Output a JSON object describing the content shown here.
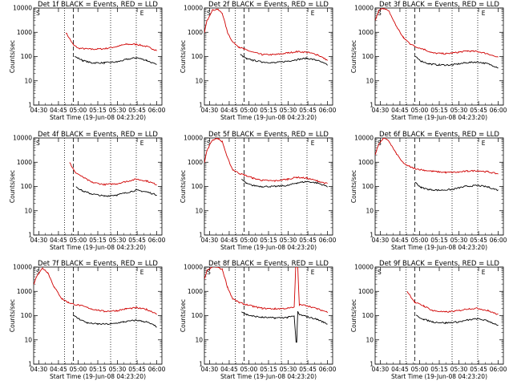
{
  "figure": {
    "xlabel": "Start Time (19-Jun-08 04:23:20)",
    "ylabel": "Counts/sec"
  },
  "chart_data": [
    {
      "type": "line",
      "title": "Det 1f  BLACK = Events, RED = LLD",
      "xticks": [
        "04:30",
        "04:45",
        "05:00",
        "05:15",
        "05:30",
        "05:45",
        "06:00"
      ],
      "yticks": [
        "1",
        "10",
        "100",
        "1000",
        "10000"
      ],
      "ylim": [
        1,
        10000
      ],
      "yscale": "log",
      "legend_marks": [
        "S",
        "E"
      ],
      "series": [
        {
          "color": "#d00000",
          "x": [
            0.0,
            0.24,
            0.25,
            0.31,
            0.35,
            0.45,
            0.55,
            0.65,
            0.72,
            0.8,
            0.88,
            0.96
          ],
          "y": [
            null,
            null,
            1000,
            300,
            220,
            200,
            210,
            260,
            320,
            320,
            260,
            180
          ]
        },
        {
          "color": "#000000",
          "x": [
            0.31,
            0.32,
            0.38,
            0.45,
            0.55,
            0.65,
            0.72,
            0.8,
            0.88,
            0.96
          ],
          "y": [
            null,
            100,
            70,
            55,
            55,
            60,
            75,
            90,
            70,
            45
          ]
        }
      ]
    },
    {
      "type": "line",
      "title": "Det 2f  BLACK = Events, RED = LLD",
      "xticks": [
        "04:30",
        "04:45",
        "05:00",
        "05:15",
        "05:30",
        "05:45",
        "06:00"
      ],
      "yticks": [
        "1",
        "10",
        "100",
        "1000",
        "10000"
      ],
      "ylim": [
        1,
        10000
      ],
      "yscale": "log",
      "legend_marks": [
        "S",
        "E"
      ],
      "series": [
        {
          "color": "#d00000",
          "x": [
            0.0,
            0.02,
            0.06,
            0.1,
            0.14,
            0.18,
            0.22,
            0.27,
            0.31,
            0.38,
            0.45,
            0.55,
            0.65,
            0.72,
            0.8,
            0.88,
            0.96
          ],
          "y": [
            1000,
            3000,
            8000,
            9000,
            6000,
            1000,
            400,
            250,
            200,
            150,
            120,
            120,
            140,
            160,
            150,
            120,
            70
          ]
        },
        {
          "color": "#000000",
          "x": [
            0.27,
            0.28,
            0.33,
            0.38,
            0.45,
            0.55,
            0.65,
            0.72,
            0.8,
            0.88,
            0.96
          ],
          "y": [
            null,
            120,
            80,
            70,
            60,
            55,
            65,
            75,
            85,
            70,
            45
          ]
        }
      ]
    },
    {
      "type": "line",
      "title": "Det 3f  BLACK = Events, RED = LLD",
      "xticks": [
        "04:30",
        "04:45",
        "05:00",
        "05:15",
        "05:30",
        "05:45",
        "06:00"
      ],
      "yticks": [
        "1",
        "10",
        "100",
        "1000",
        "10000"
      ],
      "ylim": [
        1,
        10000
      ],
      "yscale": "log",
      "legend_marks": [
        "S",
        "E"
      ],
      "series": [
        {
          "color": "#d00000",
          "x": [
            0.0,
            0.03,
            0.07,
            0.11,
            0.16,
            0.22,
            0.27,
            0.31,
            0.38,
            0.45,
            0.55,
            0.65,
            0.72,
            0.8,
            0.88,
            0.96
          ],
          "y": [
            3000,
            8000,
            10000,
            7000,
            2000,
            600,
            350,
            260,
            200,
            140,
            130,
            150,
            170,
            160,
            130,
            90
          ]
        },
        {
          "color": "#000000",
          "x": [
            0.3,
            0.31,
            0.36,
            0.42,
            0.5,
            0.6,
            0.7,
            0.8,
            0.88,
            0.96
          ],
          "y": [
            null,
            100,
            65,
            50,
            45,
            45,
            55,
            60,
            50,
            35
          ]
        }
      ]
    },
    {
      "type": "line",
      "title": "Det 4f  BLACK = Events, RED = LLD",
      "xticks": [
        "04:30",
        "04:45",
        "05:00",
        "05:15",
        "05:30",
        "05:45",
        "06:00"
      ],
      "yticks": [
        "1",
        "10",
        "100",
        "1000",
        "10000"
      ],
      "ylim": [
        1,
        10000
      ],
      "yscale": "log",
      "legend_marks": [
        "S",
        "E"
      ],
      "series": [
        {
          "color": "#d00000",
          "x": [
            0.0,
            0.26,
            0.28,
            0.32,
            0.38,
            0.45,
            0.55,
            0.65,
            0.72,
            0.8,
            0.88,
            0.96
          ],
          "y": [
            null,
            null,
            1000,
            400,
            250,
            150,
            120,
            130,
            160,
            200,
            170,
            120
          ]
        },
        {
          "color": "#000000",
          "x": [
            0.32,
            0.33,
            0.38,
            0.45,
            0.55,
            0.65,
            0.72,
            0.8,
            0.88,
            0.96
          ],
          "y": [
            null,
            100,
            65,
            50,
            40,
            45,
            55,
            70,
            60,
            45
          ]
        }
      ]
    },
    {
      "type": "line",
      "title": "Det 5f  BLACK = Events, RED = LLD",
      "xticks": [
        "04:30",
        "04:45",
        "05:00",
        "05:15",
        "05:30",
        "05:45",
        "06:00"
      ],
      "yticks": [
        "1",
        "10",
        "100",
        "1000",
        "10000"
      ],
      "ylim": [
        1,
        10000
      ],
      "yscale": "log",
      "legend_marks": [
        "S",
        "E"
      ],
      "series": [
        {
          "color": "#d00000",
          "x": [
            0.0,
            0.02,
            0.06,
            0.1,
            0.14,
            0.18,
            0.22,
            0.27,
            0.31,
            0.38,
            0.45,
            0.55,
            0.65,
            0.72,
            0.8,
            0.88,
            0.96
          ],
          "y": [
            1000,
            3000,
            8000,
            10000,
            7000,
            1500,
            500,
            350,
            300,
            220,
            180,
            170,
            200,
            240,
            220,
            170,
            130
          ]
        },
        {
          "color": "#000000",
          "x": [
            0.28,
            0.29,
            0.33,
            0.38,
            0.45,
            0.55,
            0.65,
            0.72,
            0.8,
            0.88,
            0.96
          ],
          "y": [
            null,
            200,
            130,
            110,
            100,
            100,
            110,
            140,
            160,
            140,
            100
          ]
        }
      ]
    },
    {
      "type": "line",
      "title": "Det 6f  BLACK = Events, RED = LLD",
      "xticks": [
        "04:30",
        "04:45",
        "05:00",
        "05:15",
        "05:30",
        "05:45",
        "06:00"
      ],
      "yticks": [
        "1",
        "10",
        "100",
        "1000",
        "10000"
      ],
      "ylim": [
        1,
        10000
      ],
      "yscale": "log",
      "legend_marks": [
        "S",
        "E"
      ],
      "series": [
        {
          "color": "#d00000",
          "x": [
            0.0,
            0.03,
            0.07,
            0.11,
            0.16,
            0.22,
            0.27,
            0.31,
            0.38,
            0.45,
            0.55,
            0.65,
            0.72,
            0.8,
            0.88,
            0.96
          ],
          "y": [
            2000,
            6000,
            10000,
            7000,
            2500,
            900,
            650,
            550,
            470,
            420,
            380,
            390,
            430,
            450,
            400,
            330
          ]
        },
        {
          "color": "#000000",
          "x": [
            0.3,
            0.31,
            0.36,
            0.42,
            0.5,
            0.6,
            0.7,
            0.8,
            0.88,
            0.96
          ],
          "y": [
            null,
            150,
            90,
            75,
            70,
            75,
            100,
            110,
            95,
            70
          ]
        }
      ]
    },
    {
      "type": "line",
      "title": "Det 7f  BLACK = Events, RED = LLD",
      "xticks": [
        "04:30",
        "04:45",
        "05:00",
        "05:15",
        "05:30",
        "05:45",
        "06:00"
      ],
      "yticks": [
        "1",
        "10",
        "100",
        "1000",
        "10000"
      ],
      "ylim": [
        1,
        10000
      ],
      "yscale": "log",
      "legend_marks": [
        "S",
        "E"
      ],
      "series": [
        {
          "color": "#d00000",
          "x": [
            0.0,
            0.03,
            0.07,
            0.11,
            0.16,
            0.22,
            0.27,
            0.31,
            0.38,
            0.45,
            0.55,
            0.65,
            0.72,
            0.8,
            0.88,
            0.96
          ],
          "y": [
            2000,
            5000,
            9000,
            6000,
            1500,
            500,
            350,
            300,
            250,
            190,
            150,
            160,
            190,
            210,
            180,
            120
          ]
        },
        {
          "color": "#000000",
          "x": [
            0.3,
            0.31,
            0.36,
            0.42,
            0.5,
            0.6,
            0.7,
            0.8,
            0.88,
            0.96
          ],
          "y": [
            null,
            100,
            70,
            50,
            45,
            45,
            55,
            65,
            55,
            35
          ]
        }
      ]
    },
    {
      "type": "line",
      "title": "Det 8f  BLACK = Events, RED = LLD",
      "xticks": [
        "04:30",
        "04:45",
        "05:00",
        "05:15",
        "05:30",
        "05:45",
        "06:00"
      ],
      "yticks": [
        "1",
        "10",
        "100",
        "1000",
        "10000"
      ],
      "ylim": [
        1,
        10000
      ],
      "yscale": "log",
      "legend_marks": [
        "S",
        "E"
      ],
      "series": [
        {
          "color": "#d00000",
          "x": [
            0.0,
            0.02,
            0.06,
            0.1,
            0.14,
            0.18,
            0.22,
            0.27,
            0.31,
            0.38,
            0.45,
            0.55,
            0.65,
            0.7,
            0.712,
            0.72,
            0.728,
            0.74,
            0.8,
            0.88,
            0.96
          ],
          "y": [
            3000,
            7000,
            10000,
            10000,
            8000,
            1500,
            500,
            350,
            300,
            240,
            200,
            190,
            200,
            220,
            10000,
            10000,
            10000,
            280,
            260,
            190,
            140
          ]
        },
        {
          "color": "#000000",
          "x": [
            0.28,
            0.29,
            0.33,
            0.38,
            0.45,
            0.55,
            0.65,
            0.7,
            0.715,
            0.72,
            0.728,
            0.74,
            0.8,
            0.88,
            0.96
          ],
          "y": [
            null,
            150,
            110,
            95,
            85,
            80,
            85,
            95,
            8,
            8,
            150,
            110,
            90,
            70,
            45
          ]
        }
      ]
    },
    {
      "type": "line",
      "title": "Det 9f  BLACK = Events, RED = LLD",
      "xticks": [
        "04:30",
        "04:45",
        "05:00",
        "05:15",
        "05:30",
        "05:45",
        "06:00"
      ],
      "yticks": [
        "1",
        "10",
        "100",
        "1000",
        "10000"
      ],
      "ylim": [
        1,
        10000
      ],
      "yscale": "log",
      "legend_marks": [
        "S",
        "E"
      ],
      "series": [
        {
          "color": "#d00000",
          "x": [
            0.0,
            0.24,
            0.25,
            0.31,
            0.38,
            0.45,
            0.55,
            0.65,
            0.72,
            0.8,
            0.88,
            0.96
          ],
          "y": [
            null,
            null,
            1000,
            350,
            250,
            160,
            140,
            160,
            190,
            200,
            160,
            110
          ]
        },
        {
          "color": "#000000",
          "x": [
            0.31,
            0.32,
            0.38,
            0.45,
            0.55,
            0.65,
            0.72,
            0.8,
            0.88,
            0.96
          ],
          "y": [
            null,
            100,
            70,
            55,
            50,
            55,
            65,
            75,
            60,
            40
          ]
        }
      ]
    }
  ]
}
